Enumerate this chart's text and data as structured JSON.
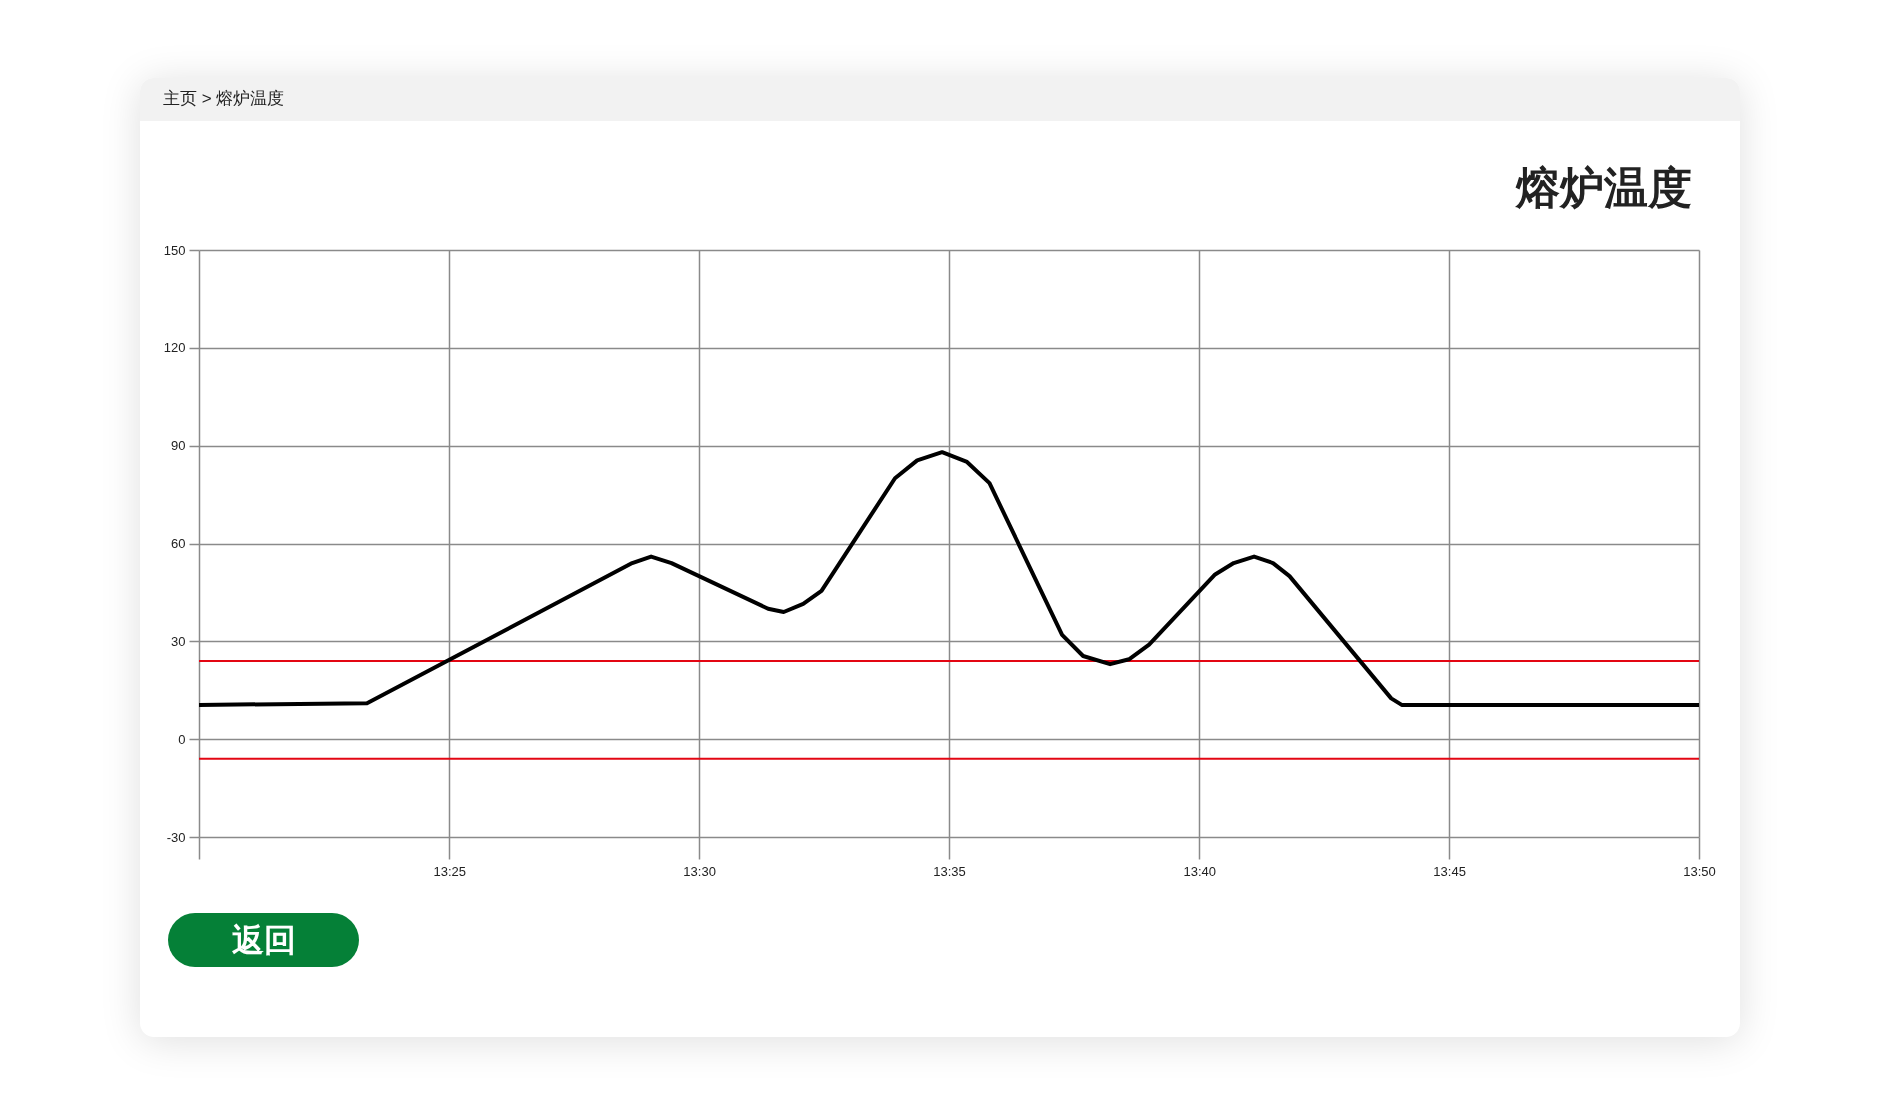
{
  "chart_data": {
    "type": "line",
    "title": "熔炉温度",
    "annotations": [
      "主页 > 熔炉温度",
      "返回"
    ],
    "x": [
      13.3333,
      13.3893,
      13.4777,
      13.484,
      13.4908,
      13.523,
      13.5282,
      13.5347,
      13.5408,
      13.5653,
      13.5727,
      13.581,
      13.5893,
      13.5968,
      13.621,
      13.628,
      13.637,
      13.6433,
      13.65,
      13.672,
      13.6782,
      13.685,
      13.6913,
      13.6968,
      13.7307,
      13.7342,
      13.8333
    ],
    "series": [
      {
        "color": "#000000",
        "values": [
          10.5,
          11,
          54,
          56,
          54,
          40,
          39,
          41.5,
          45.5,
          80,
          85.5,
          88,
          85,
          78.5,
          32,
          25.5,
          23,
          24.5,
          29,
          50.5,
          54,
          56,
          54,
          50,
          12.5,
          10.5,
          10.5
        ]
      }
    ],
    "xlim": [
      13.3333,
      13.8333
    ],
    "xticks": [
      {
        "value": 13.3333,
        "label": null
      },
      {
        "value": 13.4167,
        "label": "13:25"
      },
      {
        "value": 13.5,
        "label": "13:30"
      },
      {
        "value": 13.5833,
        "label": "13:35"
      },
      {
        "value": 13.6667,
        "label": "13:40"
      },
      {
        "value": 13.75,
        "label": "13:45"
      },
      {
        "value": 13.8333,
        "label": "13:50"
      }
    ],
    "ylim": [
      -30,
      150
    ],
    "yticks": [
      -30,
      0,
      30,
      60,
      90,
      120,
      150
    ],
    "grid": true,
    "line_style": "solid",
    "ref_lines": [
      {
        "axis": "y",
        "value": 24,
        "color": "#e30613"
      },
      {
        "axis": "y",
        "value": -6,
        "color": "#e30613"
      }
    ]
  }
}
